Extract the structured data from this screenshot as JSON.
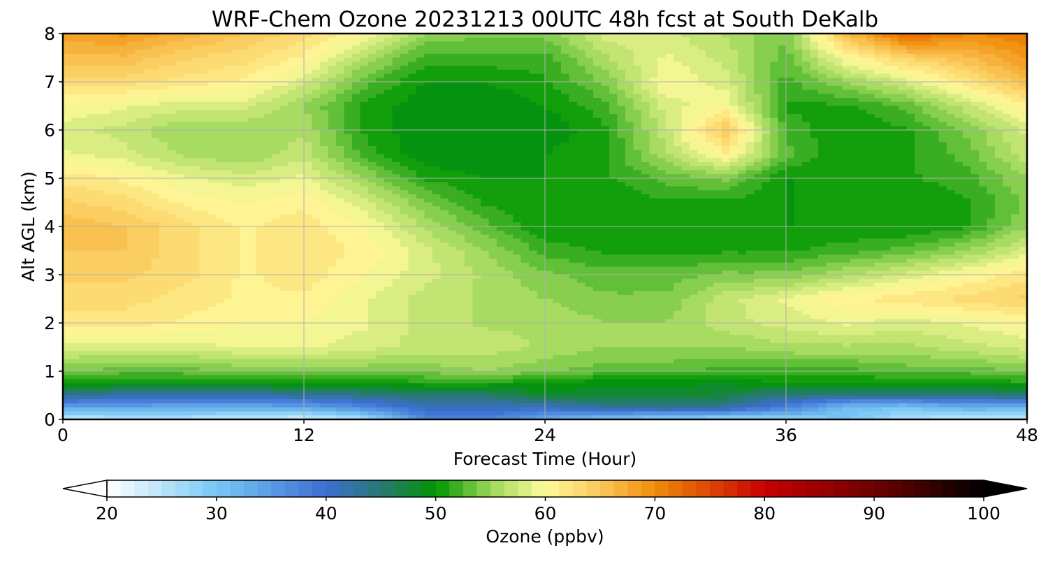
{
  "chart_data": {
    "type": "heatmap",
    "title": "WRF-Chem Ozone  20231213 00UTC 48h fcst at South DeKalb",
    "xlabel": "Forecast Time (Hour)",
    "ylabel": "Alt AGL (km)",
    "xlim": [
      0,
      48
    ],
    "ylim": [
      0,
      8
    ],
    "x_ticks": [
      "0",
      "12",
      "24",
      "36",
      "48"
    ],
    "y_ticks": [
      "0",
      "1",
      "2",
      "3",
      "4",
      "5",
      "6",
      "7",
      "8"
    ],
    "grid": true,
    "x": [
      0,
      3,
      6,
      9,
      12,
      15,
      18,
      21,
      24,
      27,
      30,
      33,
      36,
      39,
      42,
      45,
      48
    ],
    "y": [
      0,
      0.25,
      0.5,
      0.75,
      1,
      1.5,
      2,
      2.5,
      3,
      3.5,
      4,
      4.5,
      5,
      5.5,
      6,
      6.5,
      7,
      7.5,
      8
    ],
    "z_units": "ppbv",
    "z": [
      [
        24,
        25,
        25,
        24,
        23,
        26,
        37,
        38,
        33,
        30,
        28,
        27,
        28,
        30,
        26,
        24,
        25
      ],
      [
        34,
        34,
        33,
        33,
        34,
        37,
        41,
        41,
        41,
        43,
        44,
        43,
        38,
        31,
        30,
        33,
        32
      ],
      [
        44,
        42,
        42,
        42,
        43,
        44,
        45,
        45,
        48,
        48,
        48,
        47,
        44,
        44,
        44,
        44,
        45
      ],
      [
        50,
        50,
        50,
        50,
        50,
        50,
        51,
        51,
        50,
        49,
        49,
        49,
        50,
        50,
        50,
        50,
        51
      ],
      [
        54,
        53,
        53,
        54,
        54,
        54,
        54,
        55,
        54,
        53,
        53,
        52,
        52,
        52,
        53,
        53,
        54
      ],
      [
        58,
        58,
        58,
        59,
        59,
        58,
        57,
        57,
        56,
        55,
        55,
        55,
        56,
        56,
        56,
        57,
        58
      ],
      [
        62,
        62,
        61,
        60,
        60,
        59,
        57,
        56,
        56,
        55,
        55,
        57,
        58,
        59,
        58,
        59,
        60
      ],
      [
        63,
        63,
        62,
        61,
        61,
        59,
        57,
        56,
        55,
        54,
        54,
        57,
        59,
        61,
        62,
        63,
        64
      ],
      [
        64,
        64,
        63,
        61,
        62,
        60,
        58,
        56,
        54,
        53,
        53,
        54,
        54,
        56,
        58,
        60,
        62
      ],
      [
        65,
        65,
        63,
        61,
        62,
        61,
        58,
        55,
        52,
        51,
        51,
        51,
        51,
        52,
        53,
        55,
        58
      ],
      [
        66,
        65,
        63,
        61,
        62,
        60,
        56,
        53,
        50,
        50,
        50,
        50,
        50,
        50,
        50,
        51,
        55
      ],
      [
        64,
        63,
        61,
        60,
        61,
        58,
        54,
        51,
        50,
        50,
        51,
        51,
        50,
        50,
        50,
        51,
        54
      ],
      [
        62,
        61,
        59,
        58,
        59,
        55,
        51,
        50,
        50,
        51,
        53,
        54,
        50,
        50,
        51,
        52,
        55
      ],
      [
        59,
        58,
        56,
        55,
        57,
        52,
        49,
        49,
        50,
        51,
        56,
        61,
        53,
        50,
        51,
        53,
        57
      ],
      [
        58,
        57,
        55,
        55,
        56,
        51,
        49,
        49,
        49,
        51,
        57,
        65,
        52,
        50,
        51,
        54,
        58
      ],
      [
        60,
        59,
        58,
        58,
        55,
        51,
        49,
        49,
        50,
        52,
        58,
        60,
        51,
        51,
        53,
        57,
        61
      ],
      [
        63,
        63,
        62,
        61,
        58,
        53,
        50,
        50,
        51,
        54,
        60,
        58,
        52,
        55,
        58,
        62,
        66
      ],
      [
        66,
        66,
        64,
        63,
        61,
        56,
        52,
        52,
        52,
        56,
        59,
        57,
        53,
        60,
        64,
        66,
        69
      ],
      [
        68,
        69,
        67,
        65,
        63,
        60,
        55,
        54,
        54,
        58,
        58,
        56,
        54,
        66,
        73,
        70,
        71
      ]
    ]
  },
  "colorbar": {
    "label": "Ozone  (ppbv)",
    "min": 20,
    "max": 100,
    "ticks": [
      "20",
      "30",
      "40",
      "50",
      "60",
      "70",
      "80",
      "90",
      "100"
    ],
    "extend": "both",
    "stops": [
      {
        "v": 20,
        "c": "#ffffff"
      },
      {
        "v": 30,
        "c": "#78c8f5"
      },
      {
        "v": 40,
        "c": "#3c6ed2"
      },
      {
        "v": 45,
        "c": "#287873"
      },
      {
        "v": 50,
        "c": "#009600"
      },
      {
        "v": 55,
        "c": "#9bd75a"
      },
      {
        "v": 60,
        "c": "#fffa9b"
      },
      {
        "v": 65,
        "c": "#fac85a"
      },
      {
        "v": 70,
        "c": "#f08c0a"
      },
      {
        "v": 80,
        "c": "#c80000"
      },
      {
        "v": 90,
        "c": "#6e0000"
      },
      {
        "v": 100,
        "c": "#000000"
      }
    ]
  }
}
